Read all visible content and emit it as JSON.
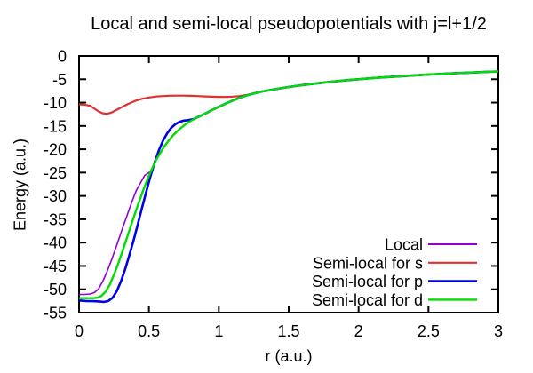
{
  "chart_data": {
    "type": "line",
    "title": "Local and semi-local pseudopotentials with j=l+1/2",
    "xlabel": "r (a.u.)",
    "ylabel": "Energy (a.u.)",
    "xlim": [
      0,
      3
    ],
    "ylim": [
      -55,
      0
    ],
    "x_ticks": [
      0,
      0.5,
      1,
      1.5,
      2,
      2.5,
      3
    ],
    "x_tick_labels": [
      "0",
      "0.5",
      "1",
      "1.5",
      "2",
      "2.5",
      "3"
    ],
    "y_ticks": [
      0,
      -5,
      -10,
      -15,
      -20,
      -25,
      -30,
      -35,
      -40,
      -45,
      -50,
      -55
    ],
    "y_tick_labels": [
      "0",
      "-5",
      "-10",
      "-15",
      "-20",
      "-25",
      "-30",
      "-35",
      "-40",
      "-45",
      "-50",
      "-55"
    ],
    "grid": false,
    "border": true,
    "mirror_ticks": true,
    "legend_position": "inside bottom-right",
    "series": [
      {
        "name": "Local",
        "color": "#9400d3",
        "width": 1.6,
        "points": [
          [
            0,
            -51.1
          ],
          [
            0.04,
            -51.1
          ],
          [
            0.08,
            -51.0
          ],
          [
            0.11,
            -50.7
          ],
          [
            0.14,
            -49.9
          ],
          [
            0.17,
            -48.3
          ],
          [
            0.2,
            -46.2
          ],
          [
            0.23,
            -43.9
          ],
          [
            0.26,
            -41.4
          ],
          [
            0.29,
            -38.8
          ],
          [
            0.32,
            -36.2
          ],
          [
            0.35,
            -33.6
          ],
          [
            0.38,
            -31.1
          ],
          [
            0.41,
            -28.8
          ],
          [
            0.44,
            -27.2
          ],
          [
            0.47,
            -25.6
          ],
          [
            0.5,
            -25.0
          ],
          [
            0.52,
            -24.3
          ],
          [
            0.55,
            -22.4
          ],
          [
            0.58,
            -20.8
          ],
          [
            0.61,
            -19.4
          ],
          [
            0.64,
            -18.2
          ],
          [
            0.67,
            -17.1
          ],
          [
            0.7,
            -16.2
          ],
          [
            0.73,
            -15.4
          ],
          [
            0.76,
            -14.7
          ],
          [
            0.8,
            -13.9
          ],
          [
            0.85,
            -13.1
          ],
          [
            0.9,
            -12.4
          ],
          [
            0.95,
            -11.6
          ],
          [
            1.0,
            -10.9
          ],
          [
            1.05,
            -10.2
          ],
          [
            1.1,
            -9.55
          ],
          [
            1.15,
            -8.95
          ],
          [
            1.2,
            -8.45
          ],
          [
            1.25,
            -8.05
          ],
          [
            1.3,
            -7.69
          ],
          [
            1.4,
            -7.14
          ],
          [
            1.5,
            -6.67
          ],
          [
            1.6,
            -6.25
          ],
          [
            1.7,
            -5.88
          ],
          [
            1.8,
            -5.56
          ],
          [
            1.9,
            -5.26
          ],
          [
            2.0,
            -5.0
          ],
          [
            2.1,
            -4.76
          ],
          [
            2.2,
            -4.55
          ],
          [
            2.3,
            -4.35
          ],
          [
            2.4,
            -4.17
          ],
          [
            2.5,
            -4.0
          ],
          [
            2.6,
            -3.85
          ],
          [
            2.7,
            -3.7
          ],
          [
            2.8,
            -3.57
          ],
          [
            2.9,
            -3.45
          ],
          [
            3.0,
            -3.33
          ]
        ]
      },
      {
        "name": "Semi-local for s",
        "color": "#e03030",
        "width": 2.2,
        "points": [
          [
            0,
            -10.4
          ],
          [
            0.04,
            -10.45
          ],
          [
            0.08,
            -10.7
          ],
          [
            0.11,
            -11.3
          ],
          [
            0.14,
            -11.9
          ],
          [
            0.17,
            -12.3
          ],
          [
            0.2,
            -12.4
          ],
          [
            0.23,
            -12.15
          ],
          [
            0.26,
            -11.7
          ],
          [
            0.3,
            -11.05
          ],
          [
            0.35,
            -10.3
          ],
          [
            0.4,
            -9.65
          ],
          [
            0.45,
            -9.2
          ],
          [
            0.5,
            -8.9
          ],
          [
            0.55,
            -8.7
          ],
          [
            0.6,
            -8.6
          ],
          [
            0.65,
            -8.52
          ],
          [
            0.7,
            -8.5
          ],
          [
            0.75,
            -8.5
          ],
          [
            0.8,
            -8.55
          ],
          [
            0.85,
            -8.6
          ],
          [
            0.9,
            -8.67
          ],
          [
            0.95,
            -8.73
          ],
          [
            1.0,
            -8.78
          ],
          [
            1.05,
            -8.8
          ],
          [
            1.1,
            -8.72
          ],
          [
            1.15,
            -8.6
          ],
          [
            1.2,
            -8.38
          ],
          [
            1.25,
            -8.05
          ],
          [
            1.3,
            -7.69
          ],
          [
            1.4,
            -7.14
          ],
          [
            1.5,
            -6.67
          ],
          [
            1.6,
            -6.25
          ],
          [
            1.7,
            -5.88
          ],
          [
            1.8,
            -5.56
          ],
          [
            1.9,
            -5.26
          ],
          [
            2.0,
            -5.0
          ],
          [
            2.1,
            -4.76
          ],
          [
            2.2,
            -4.55
          ],
          [
            2.3,
            -4.35
          ],
          [
            2.4,
            -4.17
          ],
          [
            2.5,
            -4.0
          ],
          [
            2.6,
            -3.85
          ],
          [
            2.7,
            -3.7
          ],
          [
            2.8,
            -3.57
          ],
          [
            2.9,
            -3.45
          ],
          [
            3.0,
            -3.33
          ]
        ]
      },
      {
        "name": "Semi-local for p",
        "color": "#0000e8",
        "width": 2.6,
        "points": [
          [
            0,
            -52.4
          ],
          [
            0.05,
            -52.5
          ],
          [
            0.1,
            -52.55
          ],
          [
            0.14,
            -52.6
          ],
          [
            0.18,
            -52.7
          ],
          [
            0.21,
            -52.5
          ],
          [
            0.24,
            -51.8
          ],
          [
            0.27,
            -50.4
          ],
          [
            0.3,
            -48.3
          ],
          [
            0.33,
            -45.7
          ],
          [
            0.36,
            -42.7
          ],
          [
            0.39,
            -39.5
          ],
          [
            0.42,
            -36.1
          ],
          [
            0.45,
            -32.6
          ],
          [
            0.48,
            -29.2
          ],
          [
            0.51,
            -25.9
          ],
          [
            0.54,
            -22.9
          ],
          [
            0.57,
            -20.3
          ],
          [
            0.6,
            -18.2
          ],
          [
            0.63,
            -16.6
          ],
          [
            0.66,
            -15.4
          ],
          [
            0.69,
            -14.6
          ],
          [
            0.72,
            -14.1
          ],
          [
            0.75,
            -13.85
          ],
          [
            0.78,
            -13.75
          ],
          [
            0.82,
            -13.55
          ],
          [
            0.85,
            -13.1
          ],
          [
            0.9,
            -12.4
          ],
          [
            0.95,
            -11.6
          ],
          [
            1.0,
            -10.9
          ],
          [
            1.05,
            -10.2
          ],
          [
            1.1,
            -9.55
          ],
          [
            1.15,
            -8.95
          ],
          [
            1.2,
            -8.45
          ],
          [
            1.25,
            -8.05
          ],
          [
            1.3,
            -7.69
          ],
          [
            1.4,
            -7.14
          ],
          [
            1.5,
            -6.67
          ],
          [
            1.6,
            -6.25
          ],
          [
            1.7,
            -5.88
          ],
          [
            1.8,
            -5.56
          ],
          [
            1.9,
            -5.26
          ],
          [
            2.0,
            -5.0
          ],
          [
            2.1,
            -4.76
          ],
          [
            2.2,
            -4.55
          ],
          [
            2.3,
            -4.35
          ],
          [
            2.4,
            -4.17
          ],
          [
            2.5,
            -4.0
          ],
          [
            2.6,
            -3.85
          ],
          [
            2.7,
            -3.7
          ],
          [
            2.8,
            -3.57
          ],
          [
            2.9,
            -3.45
          ],
          [
            3.0,
            -3.33
          ]
        ]
      },
      {
        "name": "Semi-local for d",
        "color": "#00dd00",
        "width": 2.4,
        "points": [
          [
            0,
            -51.9
          ],
          [
            0.05,
            -51.9
          ],
          [
            0.1,
            -51.9
          ],
          [
            0.13,
            -51.8
          ],
          [
            0.16,
            -51.4
          ],
          [
            0.19,
            -50.5
          ],
          [
            0.22,
            -49.0
          ],
          [
            0.25,
            -46.9
          ],
          [
            0.28,
            -44.5
          ],
          [
            0.31,
            -41.9
          ],
          [
            0.34,
            -39.2
          ],
          [
            0.37,
            -36.5
          ],
          [
            0.4,
            -33.8
          ],
          [
            0.43,
            -31.2
          ],
          [
            0.46,
            -28.7
          ],
          [
            0.49,
            -26.4
          ],
          [
            0.52,
            -24.3
          ],
          [
            0.55,
            -22.4
          ],
          [
            0.58,
            -20.8
          ],
          [
            0.61,
            -19.4
          ],
          [
            0.64,
            -18.2
          ],
          [
            0.67,
            -17.1
          ],
          [
            0.7,
            -16.2
          ],
          [
            0.73,
            -15.4
          ],
          [
            0.76,
            -14.7
          ],
          [
            0.8,
            -13.9
          ],
          [
            0.85,
            -13.1
          ],
          [
            0.9,
            -12.4
          ],
          [
            0.95,
            -11.6
          ],
          [
            1.0,
            -10.9
          ],
          [
            1.05,
            -10.2
          ],
          [
            1.1,
            -9.55
          ],
          [
            1.15,
            -8.95
          ],
          [
            1.2,
            -8.45
          ],
          [
            1.25,
            -8.05
          ],
          [
            1.3,
            -7.69
          ],
          [
            1.4,
            -7.14
          ],
          [
            1.5,
            -6.67
          ],
          [
            1.6,
            -6.25
          ],
          [
            1.7,
            -5.88
          ],
          [
            1.8,
            -5.56
          ],
          [
            1.9,
            -5.26
          ],
          [
            2.0,
            -5.0
          ],
          [
            2.1,
            -4.76
          ],
          [
            2.2,
            -4.55
          ],
          [
            2.3,
            -4.35
          ],
          [
            2.4,
            -4.17
          ],
          [
            2.5,
            -4.0
          ],
          [
            2.6,
            -3.85
          ],
          [
            2.7,
            -3.7
          ],
          [
            2.8,
            -3.57
          ],
          [
            2.9,
            -3.45
          ],
          [
            3.0,
            -3.33
          ]
        ]
      }
    ]
  }
}
